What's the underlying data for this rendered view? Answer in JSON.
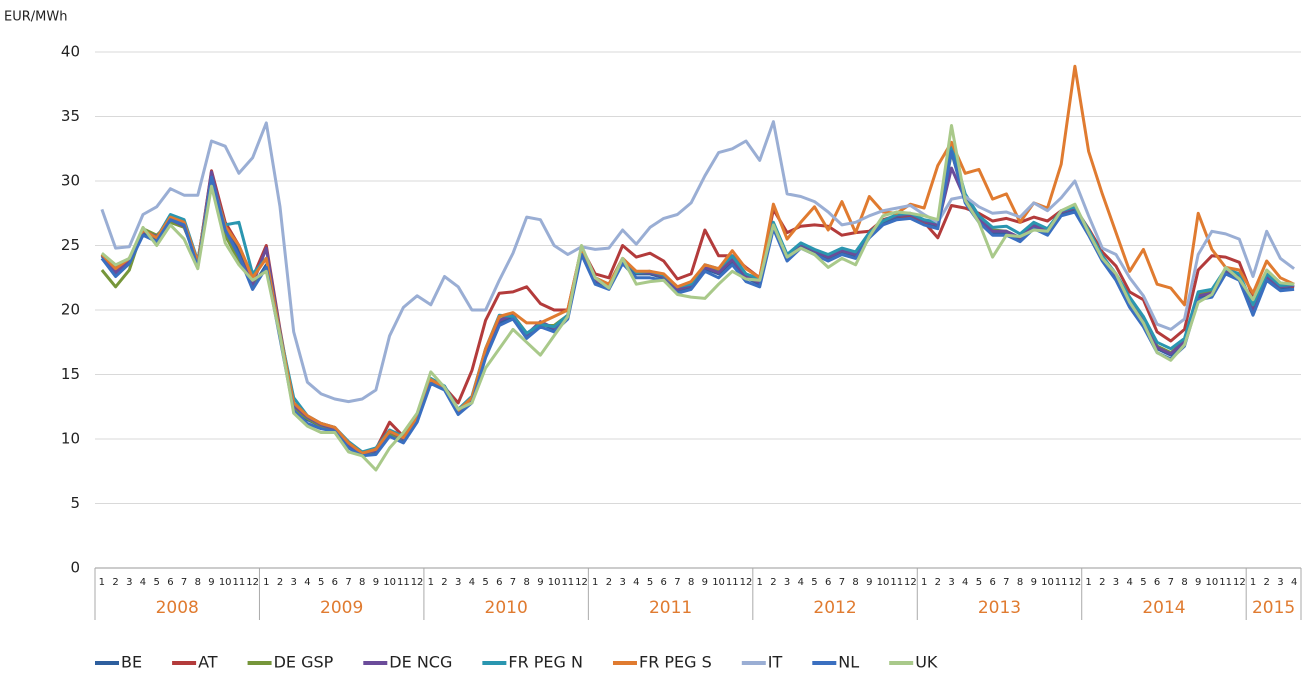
{
  "chart_data": {
    "type": "line",
    "y_axis_label": "EUR/MWh",
    "groups": [
      {
        "label": "2008",
        "months": [
          "1",
          "2",
          "3",
          "4",
          "5",
          "6",
          "7",
          "8",
          "9",
          "10",
          "11",
          "12"
        ]
      },
      {
        "label": "2009",
        "months": [
          "1",
          "2",
          "3",
          "4",
          "5",
          "6",
          "7",
          "8",
          "9",
          "10",
          "11",
          "12"
        ]
      },
      {
        "label": "2010",
        "months": [
          "1",
          "2",
          "3",
          "4",
          "5",
          "6",
          "7",
          "8",
          "9",
          "10",
          "11",
          "12"
        ]
      },
      {
        "label": "2011",
        "months": [
          "1",
          "2",
          "3",
          "4",
          "5",
          "6",
          "7",
          "8",
          "9",
          "10",
          "11",
          "12"
        ]
      },
      {
        "label": "2012",
        "months": [
          "1",
          "2",
          "3",
          "4",
          "5",
          "6",
          "7",
          "8",
          "9",
          "10",
          "11",
          "12"
        ]
      },
      {
        "label": "2013",
        "months": [
          "1",
          "2",
          "3",
          "4",
          "5",
          "6",
          "7",
          "8",
          "9",
          "10",
          "11",
          "12"
        ]
      },
      {
        "label": "2014",
        "months": [
          "1",
          "2",
          "3",
          "4",
          "5",
          "6",
          "7",
          "8",
          "9",
          "10",
          "11",
          "12"
        ]
      },
      {
        "label": "2015",
        "months": [
          "1",
          "2",
          "3",
          "4"
        ]
      }
    ],
    "ylim": [
      0,
      40
    ],
    "yticks": [
      0,
      5,
      10,
      15,
      20,
      25,
      30,
      35,
      40
    ],
    "grid": true,
    "series": [
      {
        "name": "BE",
        "color": "#2e5f9e",
        "values": [
          24.2,
          22.8,
          23.8,
          26.0,
          25.5,
          27.2,
          26.8,
          23.5,
          30.5,
          26.5,
          24.5,
          21.8,
          23.5,
          18.0,
          12.5,
          11.5,
          11.0,
          10.8,
          9.5,
          8.8,
          9.0,
          10.5,
          9.8,
          11.5,
          14.5,
          14.0,
          12.0,
          13.0,
          16.5,
          19.0,
          19.5,
          18.0,
          19.0,
          18.5,
          19.5,
          24.5,
          22.2,
          21.8,
          23.8,
          22.8,
          22.8,
          22.5,
          21.5,
          21.8,
          23.2,
          22.8,
          23.8,
          22.5,
          22.0,
          26.5,
          24.0,
          25.0,
          24.5,
          24.0,
          24.5,
          24.2,
          25.8,
          26.8,
          27.2,
          27.3,
          26.8,
          26.5,
          32.5,
          28.5,
          27.0,
          26.0,
          26.0,
          25.5,
          26.5,
          26.0,
          27.5,
          27.8,
          26.0,
          24.0,
          22.5,
          20.5,
          19.0,
          17.0,
          16.5,
          17.5,
          21.0,
          21.2,
          23.0,
          22.5,
          19.8,
          22.5,
          21.7,
          21.8
        ]
      },
      {
        "name": "AT",
        "color": "#b33b3b",
        "values": [
          24.3,
          23.0,
          23.9,
          26.2,
          25.6,
          27.0,
          26.6,
          23.6,
          30.8,
          26.8,
          25.0,
          22.5,
          25.0,
          18.5,
          12.6,
          11.8,
          11.2,
          10.9,
          9.6,
          8.9,
          9.2,
          11.3,
          10.2,
          11.6,
          14.3,
          14.0,
          12.8,
          15.3,
          19.2,
          21.3,
          21.4,
          21.8,
          20.5,
          20.0,
          20.0,
          24.8,
          22.8,
          22.5,
          25.0,
          24.1,
          24.4,
          23.8,
          22.4,
          22.8,
          26.2,
          24.2,
          24.2,
          23.3,
          22.5,
          27.8,
          26.0,
          26.5,
          26.6,
          26.5,
          25.8,
          26.0,
          26.1,
          27.0,
          27.3,
          27.2,
          26.8,
          25.6,
          28.1,
          27.9,
          27.5,
          26.9,
          27.1,
          26.8,
          27.2,
          26.9,
          27.7,
          27.9,
          26.3,
          24.5,
          23.4,
          21.4,
          20.8,
          18.3,
          17.6,
          18.5,
          23.1,
          24.2,
          24.1,
          23.7,
          21.0,
          23.0,
          22.0,
          21.8
        ]
      },
      {
        "name": "DE GSP",
        "color": "#76963a",
        "values": [
          23.1,
          21.8,
          23.1,
          26.3,
          25.8,
          26.8,
          26.4,
          23.8,
          30.2,
          25.8,
          23.8,
          22.0,
          23.2,
          18.2,
          12.4,
          11.6,
          11.0,
          10.7,
          9.4,
          8.8,
          9.1,
          10.3,
          10.0,
          11.6,
          14.6,
          13.9,
          12.2,
          13.2,
          16.8,
          19.5,
          19.6,
          18.2,
          18.8,
          18.8,
          19.6,
          24.7,
          22.4,
          21.9,
          23.9,
          22.9,
          22.9,
          22.6,
          21.6,
          21.9,
          23.3,
          23.0,
          23.9,
          22.7,
          22.2,
          26.6,
          24.2,
          25.1,
          24.6,
          24.1,
          24.6,
          24.3,
          25.9,
          26.9,
          27.3,
          27.4,
          26.9,
          26.6,
          32.2,
          28.6,
          27.1,
          26.2,
          26.1,
          25.6,
          26.6,
          26.1,
          27.6,
          27.9,
          26.1,
          24.1,
          22.6,
          20.7,
          19.2,
          17.2,
          16.7,
          17.6,
          21.2,
          21.4,
          23.1,
          22.6,
          20.0,
          22.6,
          21.8,
          21.9
        ]
      },
      {
        "name": "DE NCG",
        "color": "#6b4c9a",
        "values": [
          24.0,
          22.9,
          23.9,
          26.1,
          25.7,
          27.0,
          26.5,
          23.6,
          30.7,
          26.3,
          24.2,
          22.0,
          24.8,
          18.3,
          12.6,
          11.7,
          11.1,
          10.8,
          9.5,
          8.9,
          9.1,
          10.6,
          10.0,
          11.5,
          14.5,
          14.1,
          12.1,
          13.1,
          16.6,
          19.2,
          19.6,
          18.1,
          19.1,
          18.6,
          19.6,
          24.6,
          22.3,
          21.9,
          23.9,
          22.9,
          22.9,
          22.6,
          21.6,
          21.9,
          23.3,
          22.9,
          23.9,
          22.6,
          22.1,
          26.6,
          24.1,
          25.1,
          24.6,
          24.1,
          24.6,
          24.3,
          25.9,
          26.9,
          27.3,
          27.4,
          26.9,
          26.6,
          31.0,
          28.6,
          27.1,
          26.1,
          26.1,
          25.6,
          26.6,
          26.1,
          27.6,
          27.9,
          26.1,
          24.1,
          22.6,
          20.6,
          19.1,
          17.1,
          16.6,
          17.6,
          21.1,
          21.3,
          23.1,
          22.6,
          19.9,
          22.6,
          21.8,
          21.9
        ]
      },
      {
        "name": "FR PEG N",
        "color": "#2a96b0",
        "values": [
          24.3,
          23.3,
          24.0,
          26.2,
          25.6,
          27.4,
          27.0,
          23.8,
          30.0,
          26.6,
          26.8,
          22.8,
          24.0,
          18.2,
          13.2,
          11.8,
          11.2,
          10.9,
          9.8,
          9.0,
          9.3,
          10.7,
          10.2,
          11.6,
          14.7,
          14.1,
          12.3,
          13.3,
          17.0,
          19.6,
          19.5,
          18.2,
          18.9,
          18.7,
          19.6,
          24.6,
          22.5,
          22.0,
          24.0,
          22.9,
          23.0,
          22.7,
          21.8,
          22.0,
          23.5,
          23.2,
          24.2,
          22.8,
          22.4,
          26.8,
          24.3,
          25.2,
          24.7,
          24.3,
          24.8,
          24.5,
          26.0,
          26.9,
          27.4,
          27.5,
          27.0,
          26.8,
          32.8,
          29.0,
          27.3,
          26.4,
          26.5,
          25.9,
          26.8,
          26.3,
          27.7,
          28.0,
          26.2,
          24.2,
          22.8,
          21.0,
          19.5,
          17.5,
          17.0,
          17.8,
          21.4,
          21.6,
          23.2,
          22.8,
          20.4,
          22.8,
          21.9,
          22.0
        ]
      },
      {
        "name": "FR PEG S",
        "color": "#e07b30",
        "values": [
          24.3,
          23.2,
          24.0,
          26.2,
          25.6,
          27.2,
          26.8,
          23.7,
          30.2,
          26.5,
          25.0,
          22.5,
          24.0,
          18.1,
          12.8,
          11.8,
          11.2,
          10.9,
          9.7,
          8.9,
          9.2,
          10.6,
          10.1,
          11.6,
          14.6,
          14.0,
          12.2,
          13.2,
          17.0,
          19.5,
          19.8,
          19.0,
          19.0,
          19.5,
          20.0,
          24.8,
          22.5,
          22.0,
          24.0,
          23.0,
          23.0,
          22.8,
          21.8,
          22.2,
          23.5,
          23.2,
          24.6,
          23.2,
          22.5,
          28.2,
          25.5,
          26.8,
          28.0,
          26.2,
          28.4,
          26.0,
          28.8,
          27.6,
          27.5,
          28.2,
          27.9,
          31.2,
          33.0,
          30.6,
          30.9,
          28.6,
          29.0,
          26.8,
          28.3,
          27.9,
          31.3,
          38.9,
          32.3,
          29.0,
          26.0,
          23.0,
          24.7,
          22.0,
          21.7,
          20.4,
          27.5,
          24.7,
          23.3,
          23.1,
          21.3,
          23.8,
          22.5,
          22.0
        ]
      },
      {
        "name": "IT",
        "color": "#9aaed4",
        "values": [
          27.8,
          24.8,
          24.9,
          27.4,
          28.0,
          29.4,
          28.9,
          28.9,
          33.1,
          32.7,
          30.6,
          31.8,
          34.5,
          28.0,
          18.3,
          14.4,
          13.5,
          13.1,
          12.9,
          13.1,
          13.8,
          18.0,
          20.2,
          21.1,
          20.4,
          22.6,
          21.8,
          20.0,
          20.0,
          22.3,
          24.4,
          27.2,
          27.0,
          25.0,
          24.3,
          24.9,
          24.7,
          24.8,
          26.2,
          25.1,
          26.4,
          27.1,
          27.4,
          28.3,
          30.4,
          32.2,
          32.5,
          33.1,
          31.6,
          34.6,
          29.0,
          28.8,
          28.4,
          27.6,
          26.6,
          26.8,
          27.3,
          27.7,
          27.9,
          28.1,
          27.4,
          26.8,
          28.6,
          28.8,
          28.0,
          27.5,
          27.6,
          27.2,
          28.3,
          27.7,
          28.7,
          30.0,
          27.3,
          24.8,
          24.3,
          22.5,
          21.1,
          18.9,
          18.5,
          19.3,
          24.3,
          26.1,
          25.9,
          25.5,
          22.6,
          26.1,
          24.0,
          23.2
        ]
      },
      {
        "name": "NL",
        "color": "#3a6fc0",
        "values": [
          24.0,
          22.6,
          23.6,
          25.8,
          25.3,
          27.0,
          26.6,
          23.3,
          30.3,
          26.2,
          24.2,
          21.6,
          23.3,
          17.8,
          12.2,
          11.2,
          10.8,
          10.6,
          9.3,
          8.7,
          8.8,
          10.2,
          9.7,
          11.3,
          14.3,
          13.8,
          11.9,
          12.8,
          16.3,
          18.8,
          19.3,
          17.8,
          18.7,
          18.3,
          19.3,
          24.3,
          22.0,
          21.6,
          23.6,
          22.5,
          22.5,
          22.3,
          21.3,
          21.6,
          23.0,
          22.5,
          23.5,
          22.2,
          21.8,
          26.3,
          23.8,
          24.8,
          24.3,
          23.8,
          24.3,
          24.0,
          25.6,
          26.6,
          27.0,
          27.1,
          26.6,
          26.3,
          32.3,
          28.3,
          26.8,
          25.8,
          25.8,
          25.3,
          26.3,
          25.8,
          27.3,
          27.6,
          25.8,
          23.8,
          22.3,
          20.2,
          18.7,
          16.7,
          16.2,
          17.2,
          20.8,
          21.0,
          22.8,
          22.3,
          19.6,
          22.3,
          21.5,
          21.6
        ]
      },
      {
        "name": "UK",
        "color": "#a9c98a",
        "values": [
          24.4,
          23.5,
          24.0,
          26.4,
          25.0,
          26.6,
          25.5,
          23.2,
          29.6,
          25.2,
          23.5,
          22.3,
          23.0,
          18.0,
          12.0,
          11.0,
          10.5,
          10.5,
          9.0,
          8.7,
          7.6,
          9.3,
          10.5,
          12.0,
          15.2,
          14.0,
          12.3,
          12.8,
          15.5,
          17.0,
          18.5,
          17.5,
          16.5,
          18.0,
          19.5,
          25.0,
          22.5,
          21.7,
          24.0,
          22.0,
          22.2,
          22.3,
          21.2,
          21.0,
          20.9,
          22.0,
          23.0,
          22.4,
          22.3,
          26.6,
          24.1,
          24.8,
          24.3,
          23.3,
          24.0,
          23.5,
          25.7,
          27.3,
          27.6,
          27.5,
          27.3,
          27.0,
          34.3,
          28.5,
          26.8,
          24.1,
          25.8,
          25.7,
          26.2,
          26.1,
          27.7,
          28.2,
          26.0,
          24.0,
          22.8,
          20.6,
          19.0,
          16.7,
          16.1,
          17.3,
          20.6,
          21.2,
          23.3,
          22.4,
          20.8,
          23.1,
          22.1,
          22.0
        ]
      }
    ]
  }
}
